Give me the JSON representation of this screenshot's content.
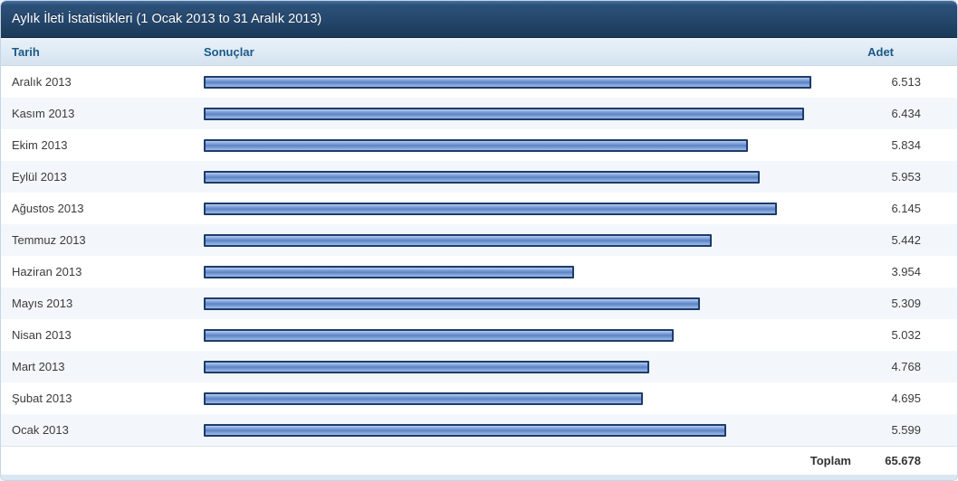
{
  "panel": {
    "title": "Aylık İleti İstatistikleri (1 Ocak 2013 to 31 Aralık 2013)"
  },
  "table": {
    "columns": {
      "date": "Tarih",
      "results": "Sonuçlar",
      "count": "Adet"
    },
    "total_label": "Toplam",
    "total_value": "65.678"
  },
  "chart_data": {
    "type": "bar",
    "orientation": "horizontal",
    "title": "Aylık İleti İstatistikleri (1 Ocak 2013 to 31 Aralık 2013)",
    "categories": [
      "Aralık 2013",
      "Kasım 2013",
      "Ekim 2013",
      "Eylül 2013",
      "Ağustos 2013",
      "Temmuz 2013",
      "Haziran 2013",
      "Mayıs 2013",
      "Nisan 2013",
      "Mart 2013",
      "Şubat 2013",
      "Ocak 2013"
    ],
    "values": [
      6513,
      6434,
      5834,
      5953,
      6145,
      5442,
      3954,
      5309,
      5032,
      4768,
      4695,
      5599
    ],
    "value_labels": [
      "6.513",
      "6.434",
      "5.834",
      "5.953",
      "6.145",
      "5.442",
      "3.954",
      "5.309",
      "5.032",
      "4.768",
      "4.695",
      "5.599"
    ],
    "total": 65678,
    "xlim": [
      0,
      6513
    ],
    "grid": false,
    "legend": "none",
    "bar_fill_color": "#6b8fce",
    "bar_border_color": "#1c3c69",
    "row_alt_color": "#f3f7fb",
    "header_text_color": "#1d5987",
    "title_bar_color": "#24466b"
  }
}
